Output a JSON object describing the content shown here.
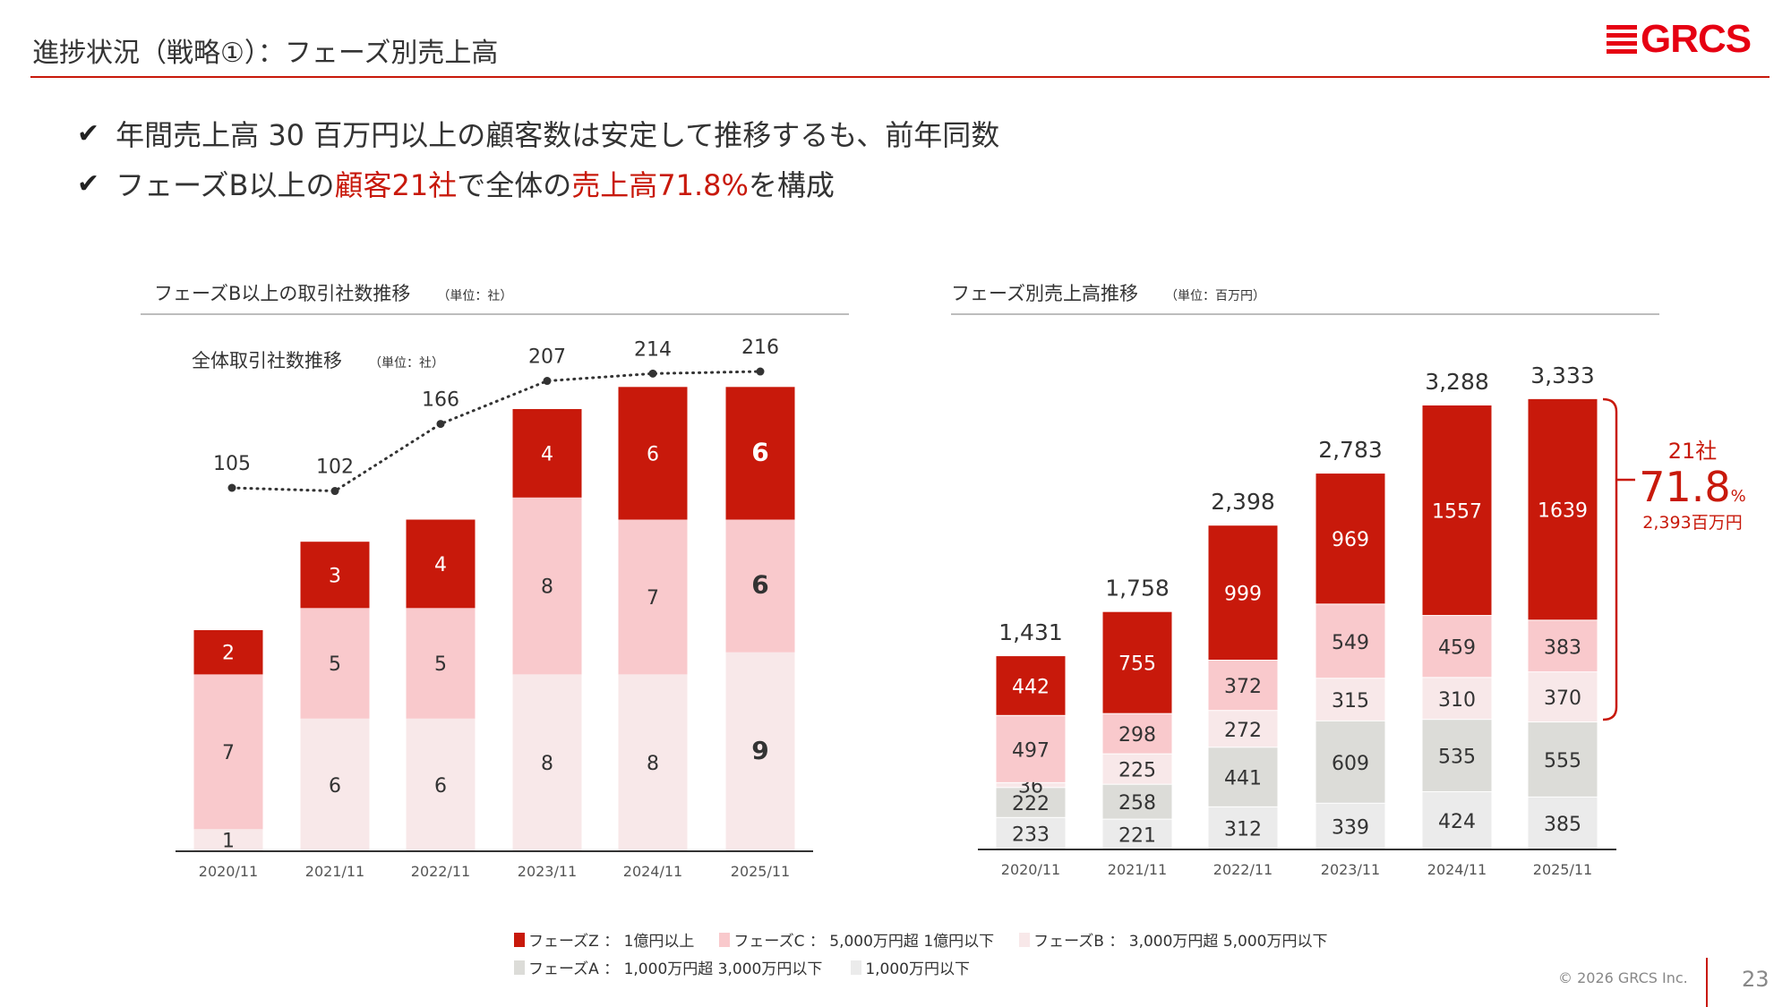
{
  "header": {
    "title": "進捗状況（戦略①）：フェーズ別売上高",
    "logo_text": "GRCS"
  },
  "bullets": [
    {
      "parts": [
        {
          "text": "年間売上高 30 百万円以上の顧客数は安定して推移するも、前年同数",
          "highlight": false
        }
      ]
    },
    {
      "parts": [
        {
          "text": "フェーズB以上の",
          "highlight": false
        },
        {
          "text": "顧客21社",
          "highlight": true
        },
        {
          "text": "で全体の",
          "highlight": false
        },
        {
          "text": "売上高71.8%",
          "highlight": true
        },
        {
          "text": "を構成",
          "highlight": false
        }
      ]
    }
  ],
  "colors": {
    "accent": "#c8190b",
    "phase_z": "#c8190b",
    "phase_c": "#f9c9cc",
    "phase_b": "#f8e8e9",
    "phase_a": "#dcdcd8",
    "under_1000": "#ebebeb"
  },
  "legend": {
    "items": [
      {
        "key": "phase_z",
        "label": "フェーズZ ： 1億円以上"
      },
      {
        "key": "phase_c",
        "label": "フェーズC ： 5,000万円超 1億円以下"
      },
      {
        "key": "phase_b",
        "label": "フェーズB ： 3,000万円超 5,000万円以下"
      },
      {
        "key": "phase_a",
        "label": "フェーズA ： 1,000万円超 3,000万円以下"
      },
      {
        "key": "under_1000",
        "label": "1,000万円以下"
      }
    ]
  },
  "chart_data": [
    {
      "type": "bar",
      "stacked": true,
      "title": "フェーズB以上の取引社数推移",
      "unit": "（単位：社）",
      "categories": [
        "2020/11",
        "2021/11",
        "2022/11",
        "2023/11",
        "2024/11",
        "2025/11"
      ],
      "series": [
        {
          "name": "フェーズB",
          "key": "phase_b",
          "values": [
            1,
            6,
            6,
            8,
            8,
            9
          ]
        },
        {
          "name": "フェーズC",
          "key": "phase_c",
          "values": [
            7,
            5,
            5,
            8,
            7,
            6
          ]
        },
        {
          "name": "フェーズZ",
          "key": "phase_z",
          "values": [
            2,
            3,
            4,
            4,
            6,
            6
          ]
        }
      ],
      "overlay_line": {
        "type": "line",
        "style": "dotted",
        "title": "全体取引社数推移",
        "unit": "（単位：社）",
        "values": [
          105,
          102,
          166,
          207,
          214,
          216
        ]
      }
    },
    {
      "type": "bar",
      "stacked": true,
      "title": "フェーズ別売上高推移",
      "unit": "（単位：百万円）",
      "categories": [
        "2020/11",
        "2021/11",
        "2022/11",
        "2023/11",
        "2024/11",
        "2025/11"
      ],
      "series": [
        {
          "name": "1,000万円以下",
          "key": "under_1000",
          "values": [
            233,
            221,
            312,
            339,
            424,
            385
          ]
        },
        {
          "name": "フェーズA",
          "key": "phase_a",
          "values": [
            222,
            258,
            441,
            609,
            535,
            555
          ]
        },
        {
          "name": "フェーズB",
          "key": "phase_b",
          "values": [
            36,
            225,
            272,
            315,
            310,
            370
          ]
        },
        {
          "name": "フェーズC",
          "key": "phase_c",
          "values": [
            497,
            298,
            372,
            549,
            459,
            383
          ]
        },
        {
          "name": "フェーズZ",
          "key": "phase_z",
          "values": [
            442,
            755,
            999,
            969,
            1557,
            1639
          ]
        }
      ],
      "totals": [
        "1,431",
        "1,758",
        "2,398",
        "2,783",
        "3,288",
        "3,333"
      ],
      "annotation": {
        "companies": "21社",
        "share": "71.8",
        "share_unit": "%",
        "amount": "2,393百万円"
      }
    }
  ],
  "footer": {
    "copyright": "© 2026 GRCS Inc.",
    "page_number": "23"
  }
}
